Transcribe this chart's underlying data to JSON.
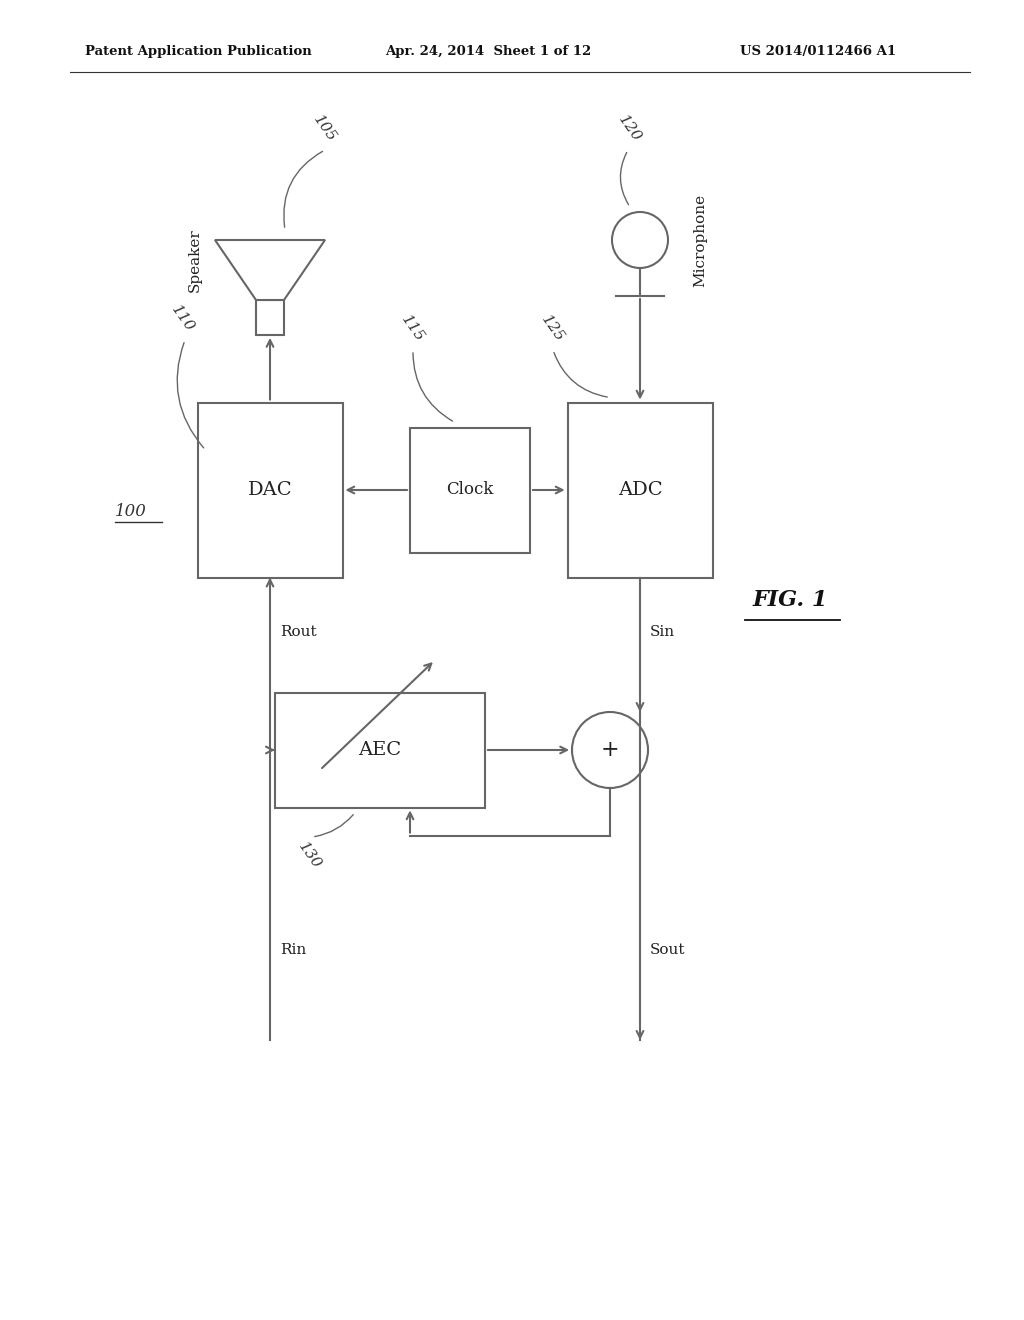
{
  "header_left": "Patent Application Publication",
  "header_mid": "Apr. 24, 2014  Sheet 1 of 12",
  "header_right": "US 2014/0112466 A1",
  "fig_label": "FIG. 1",
  "bg_color": "#ffffff",
  "line_color": "#666666",
  "box_edge": "#666666",
  "label_100": "100",
  "label_105": "105",
  "label_110": "110",
  "label_115": "115",
  "label_120": "120",
  "label_125": "125",
  "label_130": "130",
  "text_DAC": "DAC",
  "text_Clock": "Clock",
  "text_ADC": "ADC",
  "text_AEC": "AEC",
  "text_Speaker": "Speaker",
  "text_Microphone": "Microphone",
  "text_Rout": "Rout",
  "text_Rin": "Rin",
  "text_Sin": "Sin",
  "text_Sout": "Sout"
}
